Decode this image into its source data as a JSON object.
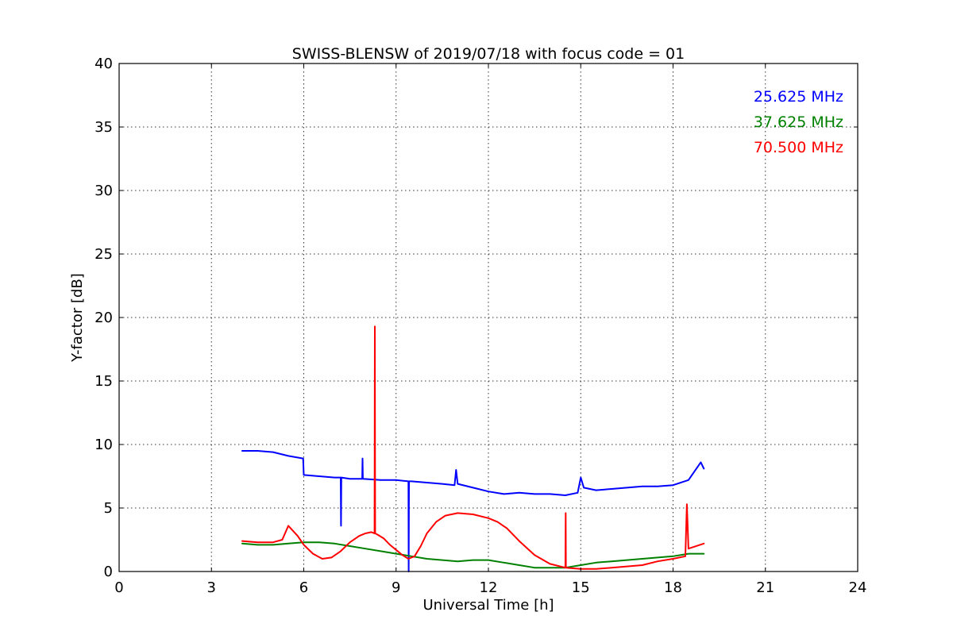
{
  "chart_data": {
    "type": "line",
    "title": "SWISS-BLENSW of 2019/07/18 with focus code = 01",
    "xlabel": "Universal Time [h]",
    "ylabel": "Y-factor [dB]",
    "xlim": [
      0,
      24
    ],
    "ylim": [
      0,
      40
    ],
    "xticks": [
      "0",
      "3",
      "6",
      "9",
      "12",
      "15",
      "18",
      "21",
      "24"
    ],
    "yticks": [
      "0",
      "5",
      "10",
      "15",
      "20",
      "25",
      "30",
      "35",
      "40"
    ],
    "grid": true,
    "legend_position": "top-right",
    "series": [
      {
        "name": "25.625 MHz",
        "color": "#0000ff",
        "x": [
          4.0,
          4.5,
          5.0,
          5.5,
          5.98,
          6.0,
          6.5,
          7.0,
          7.2,
          7.21,
          7.22,
          7.5,
          7.9,
          7.91,
          7.92,
          8.5,
          9.0,
          9.4,
          9.41,
          9.42,
          9.5,
          10.0,
          10.5,
          10.9,
          10.95,
          11.0,
          11.5,
          12.0,
          12.5,
          13.0,
          13.5,
          14.0,
          14.5,
          14.9,
          15.0,
          15.1,
          15.5,
          16.0,
          16.5,
          17.0,
          17.5,
          18.0,
          18.5,
          18.9,
          19.0
        ],
        "y": [
          9.5,
          9.5,
          9.4,
          9.1,
          8.9,
          7.6,
          7.5,
          7.4,
          7.4,
          3.6,
          7.4,
          7.3,
          7.3,
          8.9,
          7.3,
          7.2,
          7.2,
          7.1,
          0.0,
          7.1,
          7.1,
          7.0,
          6.9,
          6.8,
          8.0,
          6.9,
          6.6,
          6.3,
          6.1,
          6.2,
          6.1,
          6.1,
          6.0,
          6.2,
          7.4,
          6.6,
          6.4,
          6.5,
          6.6,
          6.7,
          6.7,
          6.8,
          7.2,
          8.6,
          8.1
        ]
      },
      {
        "name": "37.625 MHz",
        "color": "#008000",
        "x": [
          4.0,
          4.5,
          5.0,
          5.5,
          6.0,
          6.5,
          7.0,
          7.5,
          8.0,
          8.5,
          9.0,
          9.5,
          10.0,
          10.5,
          11.0,
          11.5,
          12.0,
          12.5,
          13.0,
          13.5,
          14.0,
          14.5,
          15.0,
          15.5,
          16.0,
          16.5,
          17.0,
          17.5,
          18.0,
          18.5,
          19.0
        ],
        "y": [
          2.2,
          2.1,
          2.1,
          2.2,
          2.3,
          2.3,
          2.2,
          2.0,
          1.8,
          1.6,
          1.4,
          1.2,
          1.0,
          0.9,
          0.8,
          0.9,
          0.9,
          0.7,
          0.5,
          0.3,
          0.3,
          0.3,
          0.5,
          0.7,
          0.8,
          0.9,
          1.0,
          1.1,
          1.2,
          1.4,
          1.4
        ]
      },
      {
        "name": "70.500 MHz",
        "color": "#ff0000",
        "x": [
          4.0,
          4.5,
          5.0,
          5.3,
          5.5,
          5.8,
          6.0,
          6.3,
          6.6,
          6.9,
          7.2,
          7.5,
          7.8,
          8.0,
          8.2,
          8.3,
          8.31,
          8.32,
          8.4,
          8.6,
          8.8,
          9.0,
          9.2,
          9.4,
          9.6,
          9.8,
          10.0,
          10.3,
          10.6,
          11.0,
          11.5,
          12.0,
          12.3,
          12.6,
          13.0,
          13.5,
          14.0,
          14.5,
          14.51,
          14.52,
          15.0,
          15.5,
          16.0,
          16.5,
          17.0,
          17.5,
          18.0,
          18.4,
          18.45,
          18.5,
          19.0
        ],
        "y": [
          2.4,
          2.3,
          2.3,
          2.5,
          3.6,
          2.8,
          2.1,
          1.4,
          1.0,
          1.1,
          1.6,
          2.3,
          2.8,
          3.0,
          3.1,
          3.0,
          19.3,
          3.0,
          2.9,
          2.6,
          2.1,
          1.7,
          1.3,
          1.0,
          1.2,
          2.0,
          3.0,
          3.9,
          4.4,
          4.6,
          4.5,
          4.2,
          3.9,
          3.4,
          2.4,
          1.3,
          0.6,
          0.3,
          4.6,
          0.3,
          0.2,
          0.2,
          0.3,
          0.4,
          0.5,
          0.8,
          1.0,
          1.2,
          5.3,
          1.8,
          2.2
        ]
      }
    ]
  }
}
